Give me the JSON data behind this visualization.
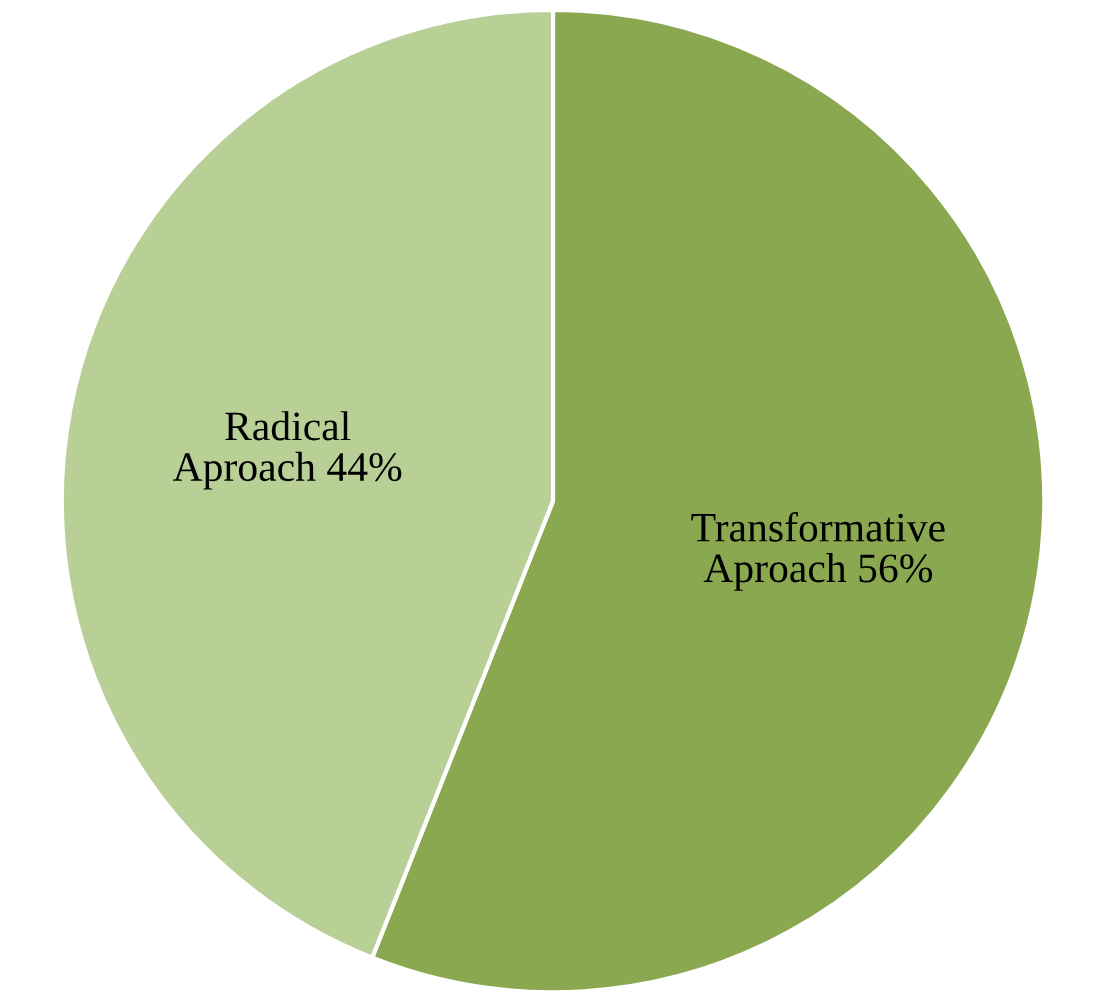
{
  "chart_data": {
    "type": "pie",
    "categories": [
      "Transformative Aproach",
      "Radical Aproach"
    ],
    "values": [
      56,
      44
    ],
    "colors": [
      "#8aa850",
      "#b8cf96"
    ],
    "value_labels": [
      "56%",
      "44%"
    ],
    "legend": false
  }
}
